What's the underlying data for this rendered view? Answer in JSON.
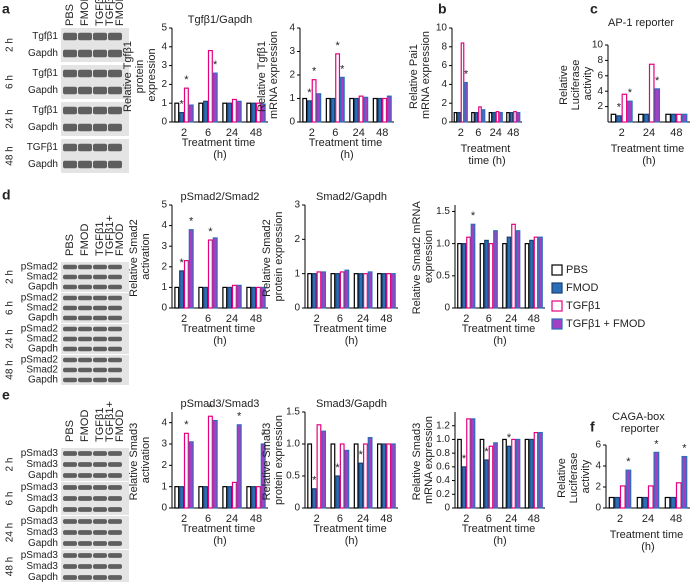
{
  "legend": {
    "series": [
      {
        "name": "PBS",
        "color": "#ffffff",
        "edge": "#000000"
      },
      {
        "name": "FMOD",
        "color": "#2a6fb8",
        "edge": "#1a3f6e"
      },
      {
        "name": "TGFβ1",
        "color": "#ffffff",
        "edge": "#e6007e"
      },
      {
        "name": "TGFβ1 + FMOD",
        "color": "#a33fc4",
        "edge": "#2a6fb8"
      }
    ]
  },
  "blots": [
    {
      "letter": "a",
      "columns": [
        [
          "PBS"
        ],
        [
          "FMOD"
        ],
        [
          "TGFβ1"
        ],
        [
          "TGFβ1+",
          "FMOD"
        ]
      ],
      "groups": [
        {
          "time": "2 h",
          "rows": [
            "Tgfβ1",
            "Gapdh"
          ]
        },
        {
          "time": "6 h",
          "rows": [
            "Tgfβ1",
            "Gapdh"
          ]
        },
        {
          "time": "24 h",
          "rows": [
            "Tgfβ1",
            "Gapdh"
          ]
        },
        {
          "time": "48 h",
          "rows": [
            "TGFβ1",
            "Gapdh"
          ]
        }
      ]
    },
    {
      "letter": "d",
      "columns": [
        [
          "PBS"
        ],
        [
          "FMOD"
        ],
        [
          "TGFβ1"
        ],
        [
          "TGFβ1+",
          "FMOD"
        ]
      ],
      "groups": [
        {
          "time": "2 h",
          "rows": [
            "pSmad2",
            "Smad2",
            "Gapdh"
          ]
        },
        {
          "time": "6 h",
          "rows": [
            "pSmad2",
            "Smad2",
            "Gapdh"
          ]
        },
        {
          "time": "24 h",
          "rows": [
            "pSmad2",
            "Smad2",
            "Gapdh"
          ]
        },
        {
          "time": "48 h",
          "rows": [
            "pSmad2",
            "Smad2",
            "Gapdh"
          ]
        }
      ]
    },
    {
      "letter": "e",
      "columns": [
        [
          "PBS"
        ],
        [
          "FMOD"
        ],
        [
          "TGFβ1"
        ],
        [
          "TGFβ1+",
          "FMOD"
        ]
      ],
      "groups": [
        {
          "time": "2 h",
          "rows": [
            "pSmad3",
            "Smad3",
            "Gapdh"
          ]
        },
        {
          "time": "6 h",
          "rows": [
            "pSmad3",
            "Smad3",
            "Gapdh"
          ]
        },
        {
          "time": "24 h",
          "rows": [
            "pSmad3",
            "Smad3",
            "Gapdh"
          ]
        },
        {
          "time": "48 h",
          "rows": [
            "pSmad3",
            "Smad3",
            "Gapdh"
          ]
        }
      ]
    }
  ],
  "chart_data": [
    {
      "type": "bar",
      "title": "Tgfβ1/Gapdh",
      "ylabel": "Relative Tgfβ1 protein expression",
      "xlabel": "Treatment time (h)",
      "categories": [
        "2",
        "6",
        "24",
        "48"
      ],
      "ylim": [
        0,
        5
      ],
      "yticks": [
        0,
        1,
        2,
        3,
        4,
        5
      ],
      "series": [
        {
          "values": [
            1,
            1,
            1,
            1
          ]
        },
        {
          "values": [
            0.5,
            1.1,
            1.0,
            1.0
          ],
          "stars": [
            "*",
            null,
            null,
            null
          ]
        },
        {
          "values": [
            1.8,
            3.8,
            1.2,
            1.0
          ],
          "stars": [
            "*",
            null,
            null,
            null
          ]
        },
        {
          "values": [
            0.9,
            2.6,
            1.1,
            0.95
          ],
          "stars": [
            null,
            "*",
            null,
            null
          ]
        }
      ]
    },
    {
      "type": "bar",
      "ylabel": "Relative Tgfβ1 mRNA expression",
      "xlabel": "Treatment time (h)",
      "categories": [
        "2",
        "6",
        "24",
        "48"
      ],
      "ylim": [
        0,
        4
      ],
      "yticks": [
        0,
        1,
        2,
        3,
        4
      ],
      "series": [
        {
          "values": [
            1,
            1,
            1,
            1
          ]
        },
        {
          "values": [
            0.9,
            1.0,
            1.0,
            1.0
          ],
          "stars": [
            "*",
            null,
            null,
            null
          ]
        },
        {
          "values": [
            1.8,
            2.9,
            1.1,
            1.0
          ],
          "stars": [
            "*",
            "*",
            null,
            null
          ]
        },
        {
          "values": [
            1.2,
            1.9,
            1.05,
            1.1
          ],
          "stars": [
            null,
            "*",
            null,
            null
          ]
        }
      ]
    },
    {
      "type": "bar",
      "letter": "b",
      "ylabel": "Relative Pai1 mRNA expression",
      "xlabel": "Treatment time (h)",
      "categories": [
        "2",
        "6",
        "24",
        "48"
      ],
      "ylim": [
        0,
        10
      ],
      "yticks": [
        0,
        2,
        4,
        6,
        8,
        10
      ],
      "series": [
        {
          "values": [
            1,
            1,
            1,
            1
          ]
        },
        {
          "values": [
            1,
            1,
            1,
            1
          ]
        },
        {
          "values": [
            8.4,
            1.6,
            1.1,
            1.1
          ]
        },
        {
          "values": [
            4.2,
            1.3,
            1.0,
            1.0
          ],
          "stars": [
            "*",
            null,
            null,
            null
          ]
        }
      ]
    },
    {
      "type": "bar",
      "letter": "c",
      "title": "AP-1 reporter",
      "ylabel": "Relative Luciferase activity",
      "xlabel": "Treatment time (h)",
      "categories": [
        "2",
        "24",
        "48"
      ],
      "ylim": [
        0,
        10
      ],
      "yticks": [
        2,
        4,
        6,
        8,
        10
      ],
      "series": [
        {
          "values": [
            1,
            1,
            1
          ]
        },
        {
          "values": [
            0.8,
            1,
            1
          ],
          "stars": [
            "*",
            null,
            null
          ]
        },
        {
          "values": [
            3.6,
            7.5,
            1
          ]
        },
        {
          "values": [
            2.7,
            4.3,
            1
          ],
          "stars": [
            "*",
            "*",
            null
          ]
        }
      ]
    },
    {
      "type": "bar",
      "title": "pSmad2/Smad2",
      "ylabel": "Relative Smad2 activation",
      "xlabel": "Treatment time (h)",
      "categories": [
        "2",
        "6",
        "24",
        "48"
      ],
      "ylim": [
        0,
        5
      ],
      "yticks": [
        0,
        1,
        2,
        3,
        4,
        5
      ],
      "series": [
        {
          "values": [
            1,
            1,
            1,
            1
          ]
        },
        {
          "values": [
            1.8,
            1.0,
            1.0,
            1.0
          ],
          "stars": [
            "*",
            null,
            null,
            null
          ]
        },
        {
          "values": [
            2.3,
            3.3,
            1.1,
            1.0
          ],
          "stars": [
            null,
            "*",
            null,
            null
          ]
        },
        {
          "values": [
            3.8,
            3.4,
            1.1,
            1.0
          ],
          "stars": [
            "*",
            null,
            null,
            null
          ]
        }
      ]
    },
    {
      "type": "bar",
      "title": "Smad2/Gapdh",
      "ylabel": "Relative Smad2 protein expression",
      "xlabel": "Treatment time (h)",
      "categories": [
        "2",
        "6",
        "24",
        "48"
      ],
      "ylim": [
        0,
        3
      ],
      "yticks": [
        0,
        1,
        2,
        3
      ],
      "series": [
        {
          "values": [
            1,
            1,
            1,
            1
          ]
        },
        {
          "values": [
            1,
            1,
            1,
            1
          ]
        },
        {
          "values": [
            1.05,
            1.05,
            1.0,
            1.0
          ]
        },
        {
          "values": [
            1.05,
            1.1,
            1.05,
            1.0
          ]
        }
      ]
    },
    {
      "type": "bar",
      "ylabel": "Relative Smad2 mRNA expression",
      "xlabel": "Treatment time (h)",
      "categories": [
        "2",
        "6",
        "24",
        "48"
      ],
      "ylim": [
        0,
        1.6
      ],
      "yticks": [
        0,
        0.5,
        {
          "value": 1,
          "label": "1.0"
        },
        1.5
      ],
      "series": [
        {
          "values": [
            1,
            1,
            1,
            1
          ]
        },
        {
          "values": [
            1.0,
            1.05,
            1.1,
            1.05
          ]
        },
        {
          "values": [
            1.1,
            1.0,
            1.3,
            1.1
          ]
        },
        {
          "values": [
            1.3,
            1.2,
            1.2,
            1.1
          ],
          "stars": [
            "*",
            null,
            null,
            null
          ]
        }
      ]
    },
    {
      "type": "bar",
      "title": "pSmad3/Smad3",
      "ylabel": "Relative Smad3 activation",
      "xlabel": "Treatment time (h)",
      "categories": [
        "2",
        "6",
        "24",
        "48"
      ],
      "ylim": [
        0,
        4.5
      ],
      "yticks": [
        0,
        1,
        2,
        3,
        4
      ],
      "series": [
        {
          "values": [
            1,
            1,
            1,
            1
          ]
        },
        {
          "values": [
            1,
            1,
            1,
            1
          ]
        },
        {
          "values": [
            3.5,
            4.3,
            1.2,
            1.0
          ],
          "stars": [
            "*",
            "*",
            null,
            null
          ]
        },
        {
          "values": [
            3.1,
            4.1,
            3.9,
            3.0
          ],
          "stars": [
            null,
            null,
            "*",
            "*"
          ]
        }
      ]
    },
    {
      "type": "bar",
      "title": "Smad3/Gapdh",
      "ylabel": "Relative Smad3 protein expression",
      "xlabel": "Treatment time (h)",
      "categories": [
        "2",
        "6",
        "24",
        "48"
      ],
      "ylim": [
        0,
        1.5
      ],
      "yticks": [
        0,
        0.5,
        {
          "value": 1,
          "label": "1.0"
        },
        1.5
      ],
      "series": [
        {
          "values": [
            1,
            1,
            1,
            1
          ]
        },
        {
          "values": [
            0.3,
            0.5,
            0.7,
            1.0
          ],
          "stars": [
            "*",
            "*",
            "*",
            null
          ]
        },
        {
          "values": [
            1.3,
            1.0,
            1.0,
            1.0
          ]
        },
        {
          "values": [
            1.2,
            0.9,
            1.1,
            1.0
          ]
        }
      ]
    },
    {
      "type": "bar",
      "ylabel": "Relative Smad3 mRNA expression",
      "xlabel": "Treatment time (h)",
      "categories": [
        "2",
        "6",
        "24",
        "48"
      ],
      "ylim": [
        0,
        1.4
      ],
      "yticks": [
        0,
        0.2,
        0.4,
        0.6,
        0.8,
        {
          "value": 1,
          "label": "1.0"
        },
        1.2
      ],
      "series": [
        {
          "values": [
            1,
            1,
            1,
            1
          ]
        },
        {
          "values": [
            0.6,
            0.7,
            0.9,
            1.0
          ],
          "stars": [
            "*",
            "*",
            "*",
            null
          ]
        },
        {
          "values": [
            1.3,
            0.9,
            1.0,
            1.1
          ]
        },
        {
          "values": [
            1.3,
            0.95,
            1.0,
            1.1
          ]
        }
      ]
    },
    {
      "type": "bar",
      "letter": "f",
      "title": "CAGA-box reporter",
      "ylabel": "Relative Luciferase activity",
      "xlabel": "Treatment time (h)",
      "categories": [
        "2",
        "24",
        "48"
      ],
      "ylim": [
        0,
        6
      ],
      "yticks": [
        0,
        2,
        4,
        6
      ],
      "series": [
        {
          "values": [
            1,
            1,
            1
          ]
        },
        {
          "values": [
            1,
            1,
            1
          ]
        },
        {
          "values": [
            2.1,
            2.1,
            2.4
          ]
        },
        {
          "values": [
            3.6,
            5.3,
            4.9
          ],
          "stars": [
            "*",
            "*",
            "*"
          ]
        }
      ]
    }
  ]
}
